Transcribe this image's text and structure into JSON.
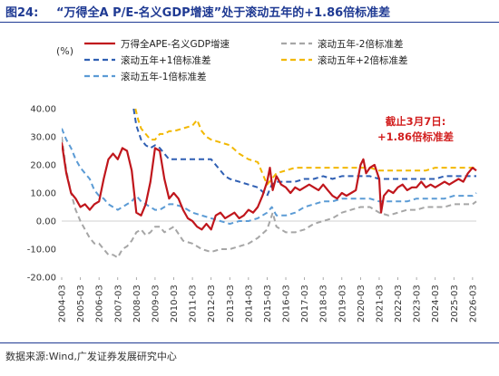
{
  "header": {
    "figure_no": "图24:",
    "title": "“万得全A P/E-名义GDP增速”处于滚动五年的+1.86倍标准差"
  },
  "footer": {
    "source": "数据来源:Wind,广发证券发展研究中心"
  },
  "colors": {
    "main": "#c0161c",
    "minus2": "#a6a6a6",
    "plus1": "#2f5fb3",
    "plus2": "#f2b800",
    "minus1": "#5b9bd5",
    "annotation": "#d21f1f"
  },
  "chart_data": {
    "type": "line",
    "unit_label": "(%)",
    "ylim": [
      -20,
      40
    ],
    "yticks": [
      "40.00",
      "30.00",
      "20.00",
      "10.00",
      "0.00",
      "-10.00",
      "-20.00"
    ],
    "xlim": [
      2004.0,
      2026.2
    ],
    "xticks": [
      "2004-03",
      "2005-03",
      "2006-03",
      "2007-03",
      "2008-03",
      "2009-03",
      "2010-03",
      "2011-03",
      "2012-03",
      "2013-03",
      "2014-03",
      "2015-03",
      "2016-03",
      "2017-03",
      "2018-03",
      "2019-03",
      "2020-03",
      "2021-03",
      "2022-03",
      "2023-03",
      "2024-03",
      "2025-03",
      "2026-03"
    ],
    "annotation": [
      "截止3月7日:",
      "+1.86倍标准差"
    ],
    "legend_placement": "top",
    "series": [
      {
        "name": "万得全APE-名义GDP增速",
        "key": "main",
        "style": "solid",
        "x": [
          2004.0,
          2004.25,
          2004.5,
          2004.75,
          2005.0,
          2005.25,
          2005.5,
          2005.75,
          2006.0,
          2006.25,
          2006.5,
          2006.75,
          2007.0,
          2007.25,
          2007.5,
          2007.75,
          2008.0,
          2008.25,
          2008.5,
          2008.75,
          2009.0,
          2009.25,
          2009.5,
          2009.75,
          2010.0,
          2010.25,
          2010.5,
          2010.75,
          2011.0,
          2011.25,
          2011.5,
          2011.75,
          2012.0,
          2012.25,
          2012.5,
          2012.75,
          2013.0,
          2013.25,
          2013.5,
          2013.75,
          2014.0,
          2014.25,
          2014.5,
          2014.75,
          2015.0,
          2015.15,
          2015.3,
          2015.5,
          2015.75,
          2016.0,
          2016.25,
          2016.5,
          2016.75,
          2017.0,
          2017.25,
          2017.5,
          2017.75,
          2018.0,
          2018.25,
          2018.5,
          2018.75,
          2019.0,
          2019.25,
          2019.5,
          2019.75,
          2020.0,
          2020.15,
          2020.3,
          2020.5,
          2020.75,
          2021.0,
          2021.1,
          2021.25,
          2021.5,
          2021.75,
          2022.0,
          2022.25,
          2022.5,
          2022.75,
          2023.0,
          2023.25,
          2023.5,
          2023.75,
          2024.0,
          2024.25,
          2024.5,
          2024.75,
          2025.0,
          2025.25,
          2025.5,
          2025.75,
          2026.0,
          2026.2
        ],
        "y": [
          28,
          17,
          10,
          8,
          5,
          6,
          4,
          6,
          7,
          15,
          22,
          24,
          22,
          26,
          25,
          18,
          3,
          2,
          6,
          14,
          26,
          25,
          15,
          8,
          10,
          8,
          4,
          1,
          0,
          -2,
          -3,
          -1,
          -3,
          2,
          3,
          1,
          2,
          3,
          1,
          2,
          4,
          3,
          5,
          9,
          14,
          19,
          11,
          16,
          13,
          12,
          10,
          12,
          11,
          12,
          13,
          12,
          11,
          13,
          11,
          9,
          8,
          10,
          9,
          10,
          11,
          20,
          22,
          17,
          19,
          20,
          15,
          3,
          9,
          11,
          10,
          12,
          13,
          11,
          12,
          12,
          14,
          12,
          13,
          12,
          13,
          14,
          13,
          14,
          15,
          14,
          17,
          19,
          18
        ]
      },
      {
        "name": "滚动五年-2倍标准差",
        "key": "minus2",
        "style": "dashed",
        "x": [
          2004.0,
          2004.25,
          2004.5,
          2004.75,
          2005.0,
          2005.25,
          2005.5,
          2005.75,
          2006.0,
          2006.25,
          2006.5,
          2006.75,
          2007.0,
          2007.25,
          2007.5,
          2007.75,
          2008.0,
          2008.25,
          2008.5,
          2008.75,
          2009.0,
          2009.25,
          2009.5,
          2009.75,
          2010.0,
          2010.5,
          2011.0,
          2011.5,
          2012.0,
          2012.5,
          2013.0,
          2013.5,
          2014.0,
          2014.5,
          2015.0,
          2015.15,
          2015.3,
          2015.5,
          2016.0,
          2016.5,
          2017.0,
          2017.5,
          2018.0,
          2018.5,
          2019.0,
          2019.5,
          2020.0,
          2020.5,
          2021.0,
          2021.5,
          2022.0,
          2022.5,
          2023.0,
          2023.5,
          2024.0,
          2024.5,
          2025.0,
          2025.5,
          2026.0,
          2026.2
        ],
        "y": [
          30,
          18,
          10,
          4,
          0,
          -3,
          -6,
          -8,
          -8,
          -10,
          -12,
          -12,
          -13,
          -10,
          -9,
          -7,
          -4,
          -3,
          -5,
          -4,
          -2,
          -2,
          -4,
          -3,
          -2,
          -7,
          -8,
          -10,
          -11,
          -10,
          -10,
          -9,
          -8,
          -6,
          -3,
          0,
          3,
          -2,
          -4,
          -4,
          -3,
          -1,
          0,
          1,
          3,
          4,
          5,
          5,
          3,
          2,
          3,
          4,
          4,
          5,
          5,
          5,
          6,
          6,
          6,
          7
        ]
      },
      {
        "name": "滚动五年+1倍标准差",
        "key": "plus1",
        "style": "dashed",
        "x": [
          2007.85,
          2008.0,
          2008.25,
          2008.5,
          2008.75,
          2009.0,
          2009.25,
          2009.5,
          2009.75,
          2010.0,
          2010.5,
          2011.0,
          2011.5,
          2012.0,
          2012.25,
          2012.5,
          2012.75,
          2013.0,
          2013.5,
          2014.0,
          2014.5,
          2015.0,
          2015.25,
          2015.5,
          2016.0,
          2016.5,
          2017.0,
          2017.5,
          2018.0,
          2018.5,
          2019.0,
          2019.5,
          2020.0,
          2020.5,
          2021.0,
          2021.5,
          2022.0,
          2022.5,
          2023.0,
          2023.5,
          2024.0,
          2024.5,
          2025.0,
          2025.5,
          2026.0,
          2026.2
        ],
        "y": [
          40,
          34,
          29,
          27,
          26,
          27,
          26,
          24,
          22,
          22,
          22,
          22,
          22,
          22,
          20,
          18,
          16,
          15,
          14,
          13,
          12,
          9,
          13,
          14,
          14,
          14,
          15,
          15,
          16,
          15,
          16,
          16,
          16,
          16,
          15,
          15,
          15,
          15,
          15,
          15,
          15,
          16,
          16,
          16,
          16,
          16
        ]
      },
      {
        "name": "滚动五年+2倍标准差",
        "key": "plus2",
        "style": "dashed",
        "x": [
          2007.95,
          2008.1,
          2008.25,
          2008.5,
          2008.75,
          2009.0,
          2009.25,
          2009.5,
          2009.75,
          2010.0,
          2010.5,
          2011.0,
          2011.25,
          2011.5,
          2011.75,
          2012.0,
          2012.5,
          2013.0,
          2013.5,
          2014.0,
          2014.5,
          2015.0,
          2015.25,
          2015.5,
          2016.0,
          2016.5,
          2017.0,
          2017.5,
          2018.0,
          2018.5,
          2019.0,
          2019.5,
          2020.0,
          2020.5,
          2021.0,
          2021.5,
          2022.0,
          2022.5,
          2023.0,
          2023.5,
          2024.0,
          2024.5,
          2025.0,
          2025.5,
          2026.0,
          2026.2
        ],
        "y": [
          40,
          36,
          33,
          31,
          29,
          29,
          31,
          31,
          32,
          32,
          33,
          34,
          36,
          32,
          30,
          29,
          28,
          27,
          24,
          22,
          21,
          13,
          15,
          17,
          18,
          19,
          19,
          19,
          19,
          19,
          19,
          19,
          19,
          19,
          18,
          18,
          18,
          18,
          18,
          18,
          19,
          19,
          19,
          19,
          19,
          19
        ]
      },
      {
        "name": "滚动五年-1倍标准差",
        "key": "minus1",
        "style": "dashed",
        "x": [
          2004.0,
          2004.25,
          2004.5,
          2004.75,
          2005.0,
          2005.25,
          2005.5,
          2005.75,
          2006.0,
          2006.25,
          2006.5,
          2006.75,
          2007.0,
          2007.25,
          2007.5,
          2007.75,
          2008.0,
          2008.25,
          2008.5,
          2008.75,
          2009.0,
          2009.25,
          2009.5,
          2009.75,
          2010.0,
          2010.5,
          2011.0,
          2011.5,
          2012.0,
          2012.5,
          2013.0,
          2013.5,
          2014.0,
          2014.5,
          2015.0,
          2015.25,
          2015.5,
          2016.0,
          2016.5,
          2017.0,
          2017.5,
          2018.0,
          2018.5,
          2019.0,
          2019.5,
          2020.0,
          2020.5,
          2021.0,
          2021.5,
          2022.0,
          2022.5,
          2023.0,
          2023.5,
          2024.0,
          2024.5,
          2025.0,
          2025.5,
          2026.0,
          2026.2
        ],
        "y": [
          33,
          29,
          26,
          22,
          19,
          17,
          15,
          11,
          9,
          8,
          6,
          5,
          4,
          5,
          6,
          7,
          9,
          7,
          6,
          5,
          4,
          4,
          5,
          6,
          6,
          5,
          3,
          2,
          1,
          0,
          -1,
          0,
          0,
          1,
          3,
          5,
          2,
          2,
          3,
          5,
          6,
          7,
          7,
          8,
          8,
          8,
          8,
          7,
          7,
          7,
          7,
          8,
          8,
          8,
          8,
          9,
          9,
          9,
          10
        ]
      }
    ]
  }
}
